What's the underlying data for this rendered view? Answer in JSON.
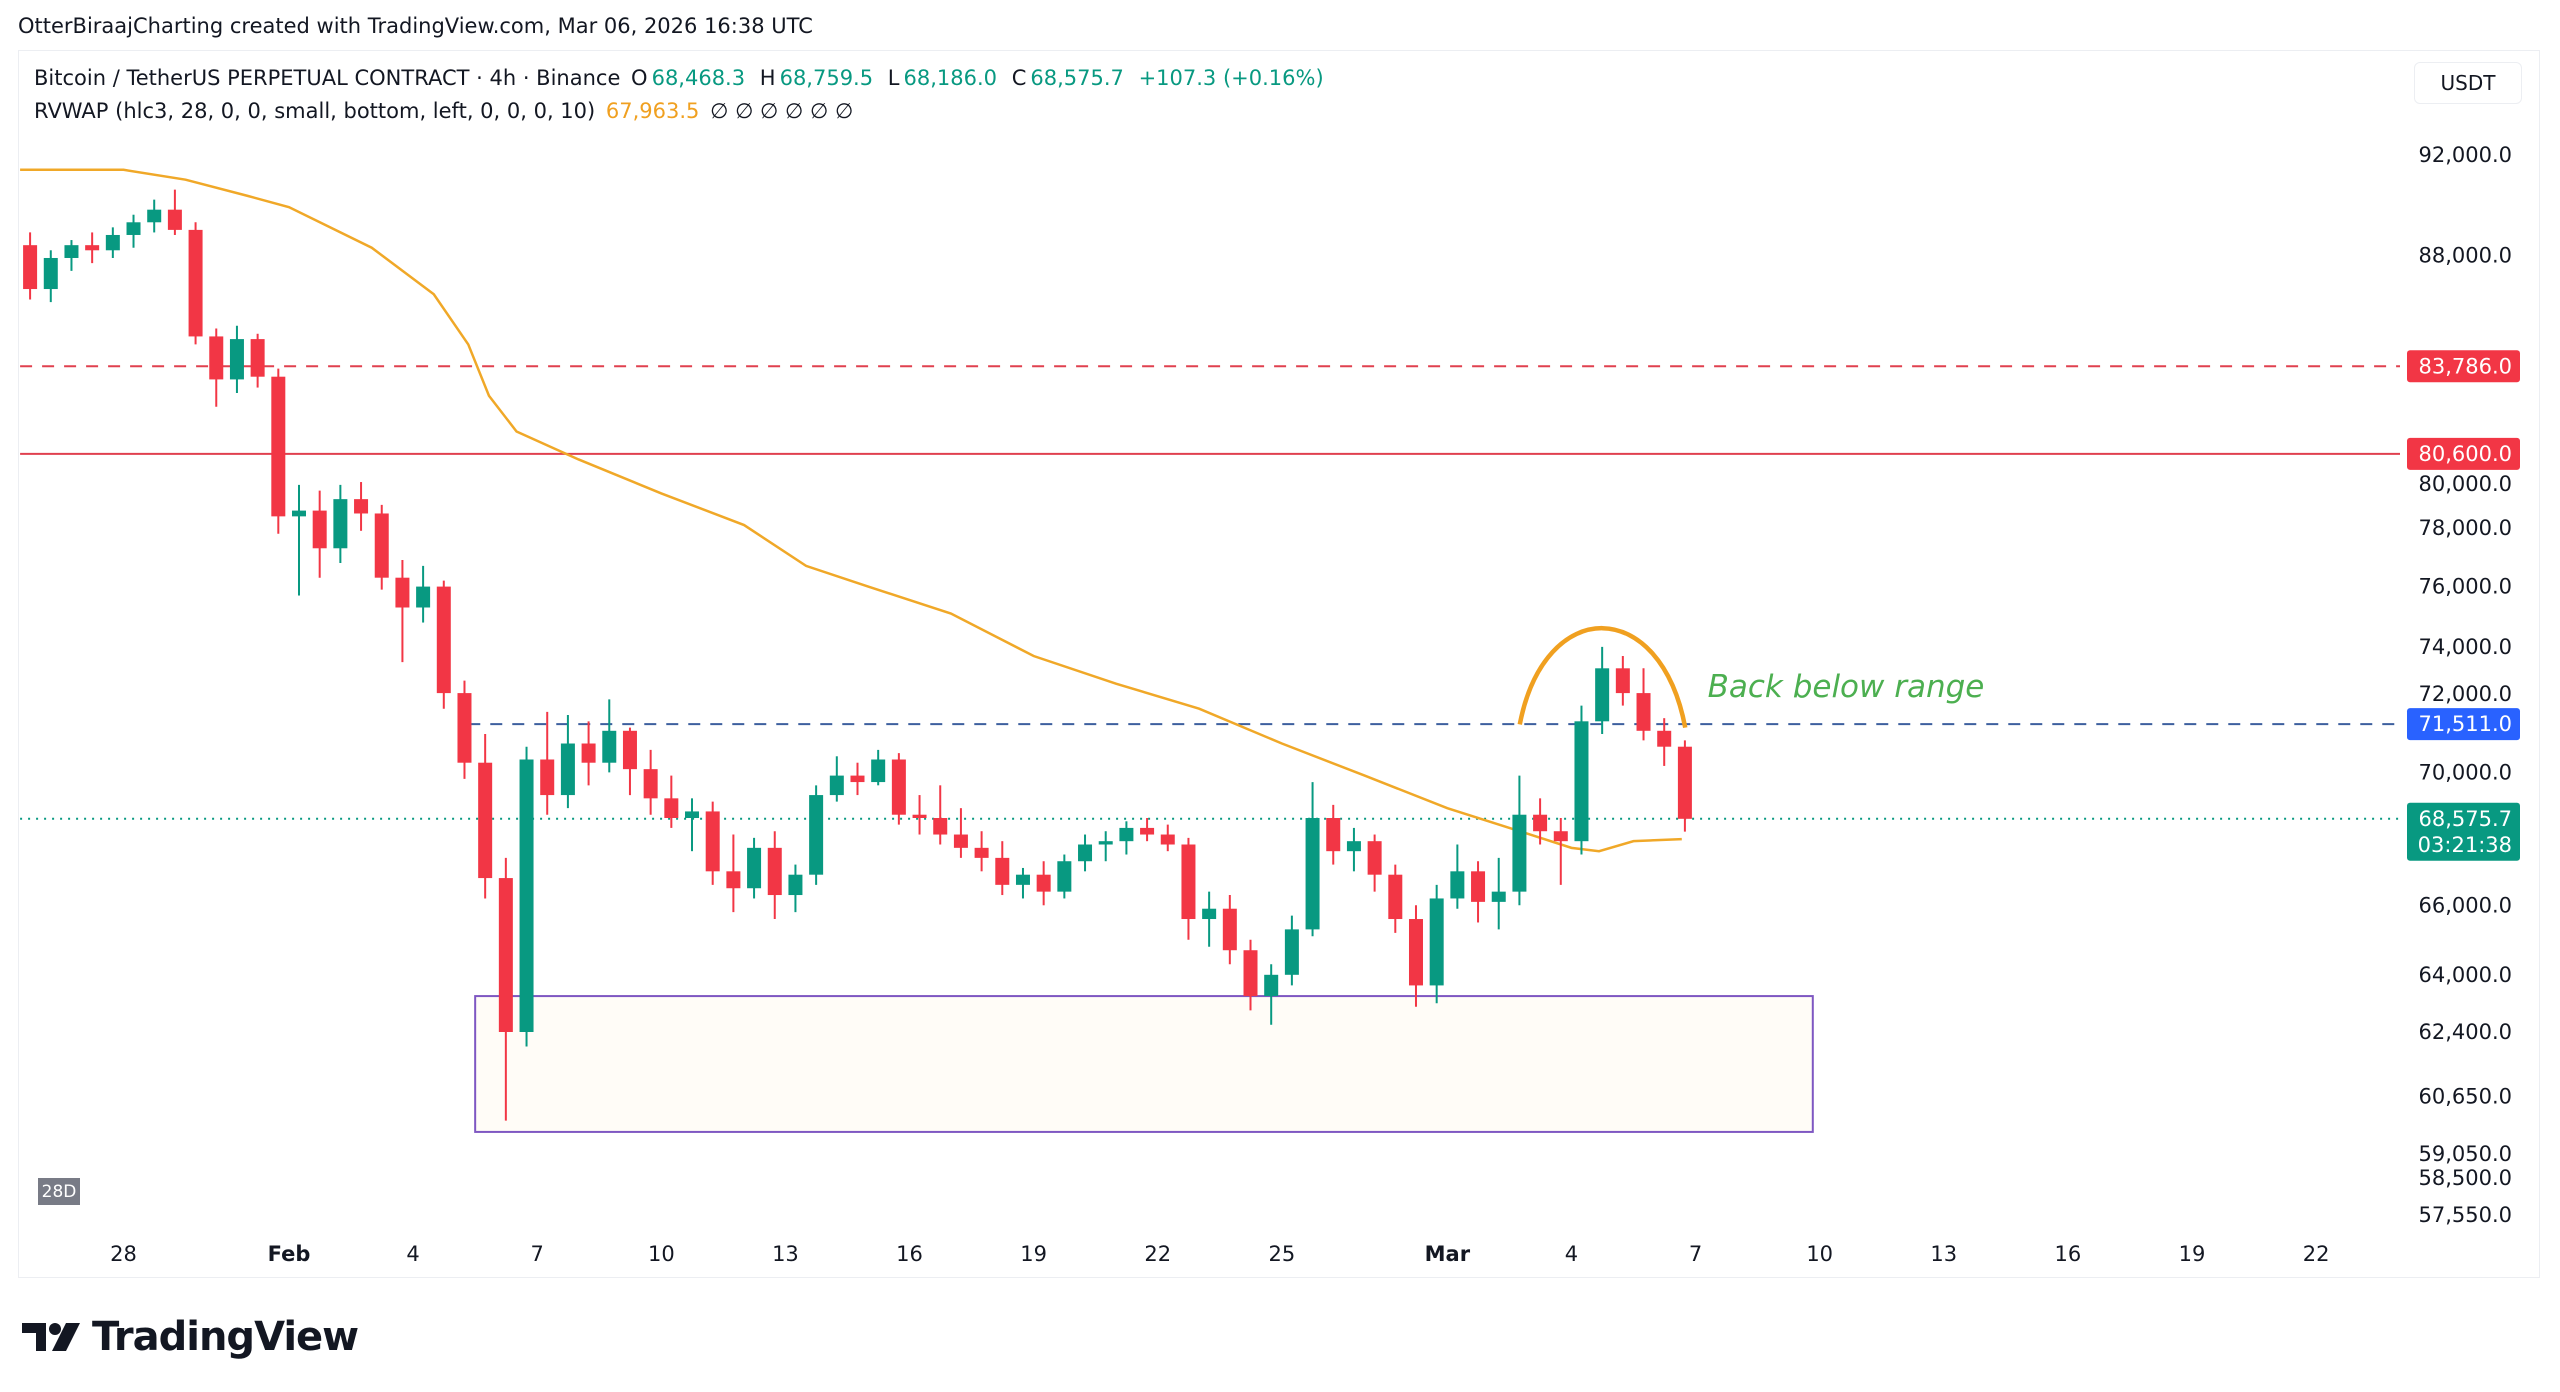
{
  "credit": "OtterBiraajCharting created with TradingView.com, Mar 06, 2026 16:38 UTC",
  "legend": {
    "symbol": "Bitcoin / TetherUS PERPETUAL CONTRACT · 4h · Binance",
    "o_label": "O",
    "o": "68,468.3",
    "h_label": "H",
    "h": "68,759.5",
    "l_label": "L",
    "l": "68,186.0",
    "c_label": "C",
    "c": "68,575.7",
    "change": "+107.3 (+0.16%)",
    "indicator": "RVWAP (hlc3, 28, 0, 0, small, bottom, left, 0, 0, 0, 10)",
    "indicator_value": "67,963.5",
    "indicator_empty": "∅ ∅ ∅ ∅ ∅ ∅"
  },
  "currency": "USDT",
  "badge": "28D",
  "logo_text": "TradingView",
  "colors": {
    "up": "#089981",
    "down": "#f23645",
    "rvwap": "#f0a828",
    "range": "#3d5f9e",
    "resistance": "#e0404f",
    "box": "#7e57c2",
    "annotation": "#4caf50",
    "arc": "#f0a020",
    "blue_label": "#2962ff"
  },
  "chart_data": {
    "type": "candlestick",
    "scale": "log",
    "ylim": [
      57000,
      93500
    ],
    "xlim": [
      "2026-01-25T12",
      "2026-03-24T12"
    ],
    "y_ticks": [
      "92,000.0",
      "88,000.0",
      "80,000.0",
      "78,000.0",
      "76,000.0",
      "74,000.0",
      "72,000.0",
      "70,000.0",
      "66,000.0",
      "64,000.0",
      "62,400.0",
      "60,650.0",
      "59,050.0",
      "58,500.0",
      "57,550.0"
    ],
    "x_ticks": [
      {
        "date": "2026-01-28",
        "label": "28"
      },
      {
        "date": "2026-02-01",
        "label": "Feb"
      },
      {
        "date": "2026-02-04",
        "label": "4"
      },
      {
        "date": "2026-02-07",
        "label": "7"
      },
      {
        "date": "2026-02-10",
        "label": "10"
      },
      {
        "date": "2026-02-13",
        "label": "13"
      },
      {
        "date": "2026-02-16",
        "label": "16"
      },
      {
        "date": "2026-02-19",
        "label": "19"
      },
      {
        "date": "2026-02-22",
        "label": "22"
      },
      {
        "date": "2026-02-25",
        "label": "25"
      },
      {
        "date": "2026-03-01",
        "label": "Mar"
      },
      {
        "date": "2026-03-04",
        "label": "4"
      },
      {
        "date": "2026-03-07",
        "label": "7"
      },
      {
        "date": "2026-03-10",
        "label": "10"
      },
      {
        "date": "2026-03-13",
        "label": "13"
      },
      {
        "date": "2026-03-16",
        "label": "16"
      },
      {
        "date": "2026-03-19",
        "label": "19"
      },
      {
        "date": "2026-03-22",
        "label": "22"
      }
    ],
    "candles": [
      [
        "2026-01-25T12",
        88400,
        88900,
        86300,
        86700
      ],
      [
        "2026-01-26T00",
        86700,
        88200,
        86200,
        87900
      ],
      [
        "2026-01-26T12",
        87900,
        88600,
        87400,
        88400
      ],
      [
        "2026-01-27T00",
        88400,
        88900,
        87700,
        88200
      ],
      [
        "2026-01-27T12",
        88200,
        89100,
        87900,
        88800
      ],
      [
        "2026-01-28T00",
        88800,
        89600,
        88300,
        89300
      ],
      [
        "2026-01-28T12",
        89300,
        90200,
        88900,
        89800
      ],
      [
        "2026-01-29T00",
        89800,
        90600,
        88800,
        89000
      ],
      [
        "2026-01-29T12",
        89000,
        89300,
        84600,
        84900
      ],
      [
        "2026-01-30T00",
        84900,
        85200,
        82300,
        83300
      ],
      [
        "2026-01-30T12",
        83300,
        85300,
        82800,
        84800
      ],
      [
        "2026-01-31T00",
        84800,
        85000,
        83000,
        83400
      ],
      [
        "2026-01-31T12",
        83400,
        83700,
        77800,
        78400
      ],
      [
        "2026-02-01T00",
        78400,
        79500,
        75700,
        78600
      ],
      [
        "2026-02-01T12",
        78600,
        79300,
        76300,
        77300
      ],
      [
        "2026-02-02T00",
        77300,
        79500,
        76800,
        79000
      ],
      [
        "2026-02-02T12",
        79000,
        79600,
        77900,
        78500
      ],
      [
        "2026-02-03T00",
        78500,
        78800,
        75900,
        76300
      ],
      [
        "2026-02-03T12",
        76300,
        76900,
        73500,
        75300
      ],
      [
        "2026-02-04T00",
        75300,
        76700,
        74800,
        76000
      ],
      [
        "2026-02-04T12",
        76000,
        76200,
        72000,
        72500
      ],
      [
        "2026-02-05T00",
        72500,
        72900,
        69800,
        70300
      ],
      [
        "2026-02-05T12",
        70300,
        71200,
        66200,
        66800
      ],
      [
        "2026-02-06T00",
        66800,
        67400,
        60000,
        62400
      ],
      [
        "2026-02-06T12",
        62400,
        70800,
        62000,
        70400
      ],
      [
        "2026-02-07T00",
        70400,
        71900,
        68700,
        69300
      ],
      [
        "2026-02-07T12",
        69300,
        71800,
        68900,
        70900
      ],
      [
        "2026-02-08T00",
        70900,
        71600,
        69600,
        70300
      ],
      [
        "2026-02-08T12",
        70300,
        72300,
        70000,
        71300
      ],
      [
        "2026-02-09T00",
        71300,
        71400,
        69300,
        70100
      ],
      [
        "2026-02-09T12",
        70100,
        70700,
        68700,
        69200
      ],
      [
        "2026-02-10T00",
        69200,
        69900,
        68300,
        68600
      ],
      [
        "2026-02-10T12",
        68600,
        69200,
        67600,
        68800
      ],
      [
        "2026-02-11T00",
        68800,
        69100,
        66600,
        67000
      ],
      [
        "2026-02-11T12",
        67000,
        68100,
        65800,
        66500
      ],
      [
        "2026-02-12T00",
        66500,
        68000,
        66200,
        67700
      ],
      [
        "2026-02-12T12",
        67700,
        68200,
        65600,
        66300
      ],
      [
        "2026-02-13T00",
        66300,
        67200,
        65800,
        66900
      ],
      [
        "2026-02-13T12",
        66900,
        69600,
        66600,
        69300
      ],
      [
        "2026-02-14T00",
        69300,
        70500,
        69100,
        69900
      ],
      [
        "2026-02-14T12",
        69900,
        70300,
        69300,
        69700
      ],
      [
        "2026-02-15T00",
        69700,
        70700,
        69600,
        70400
      ],
      [
        "2026-02-15T12",
        70400,
        70600,
        68400,
        68700
      ],
      [
        "2026-02-16T00",
        68700,
        69300,
        68100,
        68600
      ],
      [
        "2026-02-16T12",
        68600,
        69600,
        67800,
        68100
      ],
      [
        "2026-02-17T00",
        68100,
        68900,
        67400,
        67700
      ],
      [
        "2026-02-17T12",
        67700,
        68200,
        67000,
        67400
      ],
      [
        "2026-02-18T00",
        67400,
        67900,
        66300,
        66600
      ],
      [
        "2026-02-18T12",
        66600,
        67100,
        66200,
        66900
      ],
      [
        "2026-02-19T00",
        66900,
        67300,
        66000,
        66400
      ],
      [
        "2026-02-19T12",
        66400,
        67500,
        66200,
        67300
      ],
      [
        "2026-02-20T00",
        67300,
        68100,
        67000,
        67800
      ],
      [
        "2026-02-20T12",
        67800,
        68200,
        67300,
        67900
      ],
      [
        "2026-02-21T00",
        67900,
        68500,
        67500,
        68300
      ],
      [
        "2026-02-21T12",
        68300,
        68600,
        67900,
        68100
      ],
      [
        "2026-02-22T00",
        68100,
        68400,
        67600,
        67800
      ],
      [
        "2026-02-22T12",
        67800,
        68000,
        65000,
        65600
      ],
      [
        "2026-02-23T00",
        65600,
        66400,
        64800,
        65900
      ],
      [
        "2026-02-23T12",
        65900,
        66300,
        64300,
        64700
      ],
      [
        "2026-02-24T00",
        64700,
        65000,
        63000,
        63400
      ],
      [
        "2026-02-24T12",
        63400,
        64300,
        62600,
        64000
      ],
      [
        "2026-02-25T00",
        64000,
        65700,
        63700,
        65300
      ],
      [
        "2026-02-25T12",
        65300,
        69700,
        65100,
        68600
      ],
      [
        "2026-02-26T00",
        68600,
        69000,
        67200,
        67600
      ],
      [
        "2026-02-26T12",
        67600,
        68300,
        67000,
        67900
      ],
      [
        "2026-02-27T00",
        67900,
        68100,
        66400,
        66900
      ],
      [
        "2026-02-27T12",
        66900,
        67200,
        65200,
        65600
      ],
      [
        "2026-02-28T00",
        65600,
        66000,
        63100,
        63700
      ],
      [
        "2026-02-28T12",
        63700,
        66600,
        63200,
        66200
      ],
      [
        "2026-03-01T00",
        66200,
        67800,
        65900,
        67000
      ],
      [
        "2026-03-01T12",
        67000,
        67300,
        65500,
        66100
      ],
      [
        "2026-03-02T00",
        66100,
        67400,
        65300,
        66400
      ],
      [
        "2026-03-02T12",
        66400,
        69900,
        66000,
        68700
      ],
      [
        "2026-03-03T00",
        68700,
        69200,
        67800,
        68200
      ],
      [
        "2026-03-03T12",
        68200,
        68600,
        66600,
        67900
      ],
      [
        "2026-03-04T00",
        67900,
        72100,
        67500,
        71600
      ],
      [
        "2026-03-04T12",
        71600,
        74000,
        71200,
        73300
      ],
      [
        "2026-03-05T00",
        73300,
        73700,
        72100,
        72500
      ],
      [
        "2026-03-05T12",
        72500,
        73300,
        71000,
        71300
      ],
      [
        "2026-03-06T00",
        71300,
        71700,
        70200,
        70800
      ],
      [
        "2026-03-06T12",
        70800,
        71000,
        68186,
        68575.7
      ]
    ],
    "rvwap": [
      [
        "2026-01-25T12",
        91400
      ],
      [
        "2026-01-28T00",
        91400
      ],
      [
        "2026-01-29T12",
        91000
      ],
      [
        "2026-01-31T00",
        90350
      ],
      [
        "2026-02-01T00",
        89900
      ],
      [
        "2026-02-03T00",
        88300
      ],
      [
        "2026-02-04T12",
        86500
      ],
      [
        "2026-02-05T08",
        84600
      ],
      [
        "2026-02-05T20",
        82700
      ],
      [
        "2026-02-06T12",
        81400
      ],
      [
        "2026-02-08T00",
        80400
      ],
      [
        "2026-02-10T00",
        79200
      ],
      [
        "2026-02-12T00",
        78100
      ],
      [
        "2026-02-13T12",
        76700
      ],
      [
        "2026-02-15T00",
        76000
      ],
      [
        "2026-02-17T00",
        75100
      ],
      [
        "2026-02-19T00",
        73700
      ],
      [
        "2026-02-21T00",
        72800
      ],
      [
        "2026-02-23T00",
        72000
      ],
      [
        "2026-02-25T00",
        70900
      ],
      [
        "2026-02-27T00",
        69900
      ],
      [
        "2026-03-01T00",
        68900
      ],
      [
        "2026-03-02T12",
        68300
      ],
      [
        "2026-03-04T00",
        67700
      ],
      [
        "2026-03-04T16",
        67600
      ],
      [
        "2026-03-05T12",
        67900
      ],
      [
        "2026-03-06T16",
        67963.5
      ]
    ],
    "hlines": [
      {
        "price": 83786.0,
        "label": "83,786.0",
        "style": "dashed",
        "color": "#e0404f",
        "label_bg": "#f23645",
        "from": "2026-01-25T12"
      },
      {
        "price": 80600.0,
        "label": "80,600.0",
        "style": "solid",
        "color": "#e0404f",
        "label_bg": "#f23645",
        "from": "2026-01-25T12"
      },
      {
        "price": 71511.0,
        "label": "71,511.0",
        "style": "dashed",
        "color": "#3d5f9e",
        "label_bg": "#2962ff",
        "from": "2026-02-05T08"
      },
      {
        "price": 68575.7,
        "label": "68,575.7",
        "sublabel": "03:21:38",
        "style": "dotted",
        "color": "#089981",
        "label_bg": "#089981",
        "from": "2026-01-25T12"
      }
    ],
    "box": {
      "from": "2026-02-05T12",
      "to": "2026-03-09T20",
      "top": 63400,
      "bottom": 59700
    },
    "arc": {
      "start": [
        "2026-03-02T18",
        71500
      ],
      "peak": [
        "2026-03-04T18",
        74700
      ],
      "end": [
        "2026-03-06T18",
        71400
      ]
    },
    "annotation": {
      "text": "Back below range",
      "date": "2026-03-07T00",
      "price": 72700
    }
  }
}
